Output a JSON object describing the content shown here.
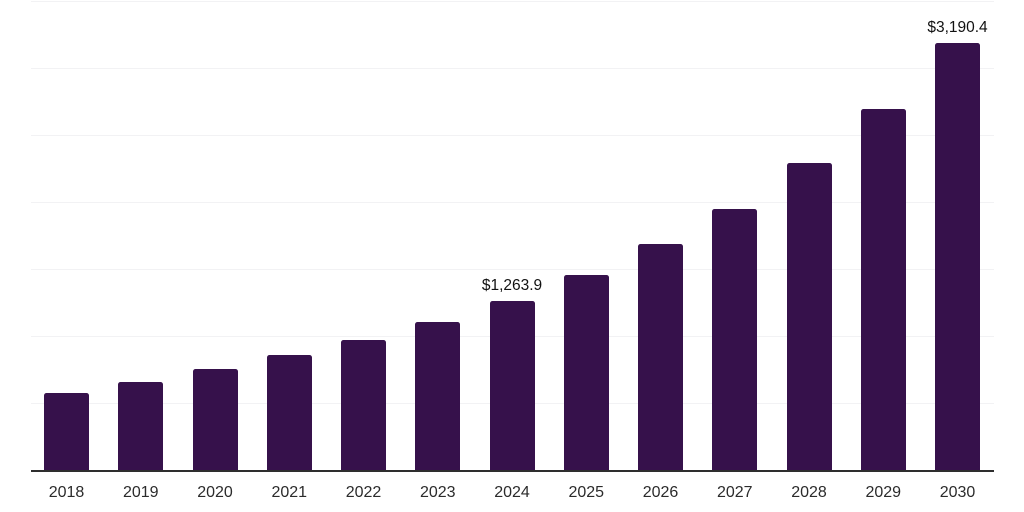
{
  "chart_data": {
    "type": "bar",
    "title": "",
    "xlabel": "",
    "ylabel": "",
    "categories": [
      "2018",
      "2019",
      "2020",
      "2021",
      "2022",
      "2023",
      "2024",
      "2025",
      "2026",
      "2027",
      "2028",
      "2029",
      "2030"
    ],
    "values": [
      576,
      659,
      755,
      859,
      970,
      1101,
      1263.9,
      1453,
      1684,
      1950,
      2289,
      2692,
      3190.4
    ],
    "point_labels": [
      "",
      "",
      "",
      "",
      "",
      "",
      "$1,263.9",
      "",
      "",
      "",
      "",
      "",
      "$3,190.4"
    ],
    "ylim": [
      0,
      3500
    ],
    "y_step": 500,
    "grid": "horizontal-only",
    "y_tick_labels_shown": false,
    "legend_position": "none",
    "colors": {
      "bar": "#36114b",
      "axis": "#2e2e2e",
      "gridline": "#f2f2f4",
      "label_text": "#121212",
      "tick_text": "#2b2b2b",
      "background": "#ffffff"
    }
  }
}
